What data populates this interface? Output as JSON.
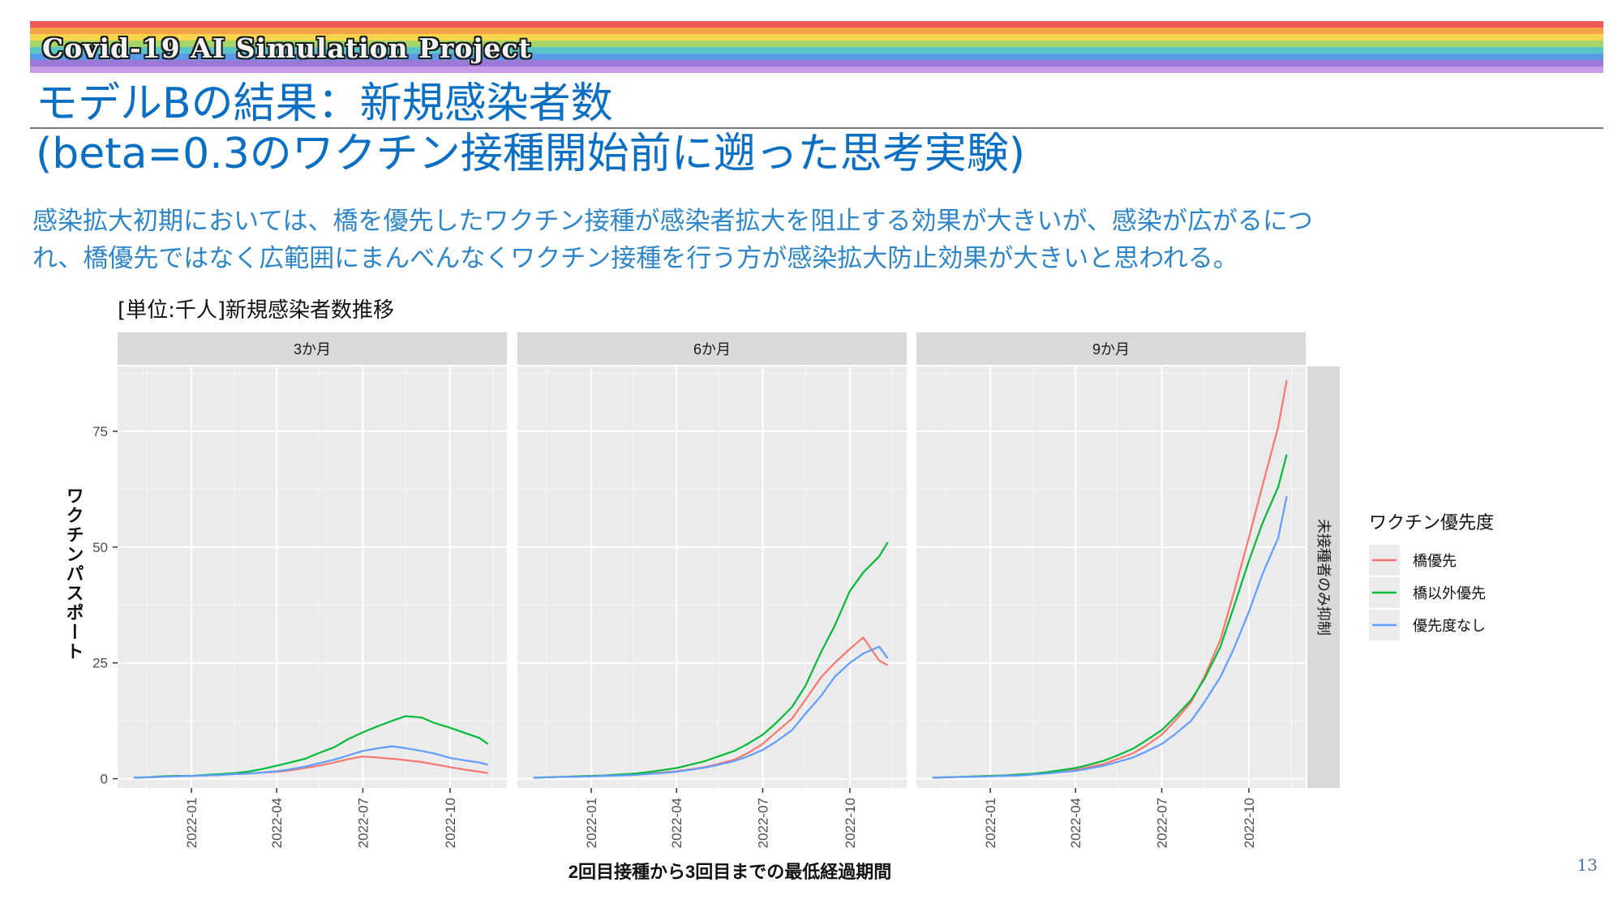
{
  "header": {
    "project_banner": "Covid-19 AI Simulation Project",
    "banner_colors": [
      "#f05a5a",
      "#f6a24a",
      "#f6d64a",
      "#a6d66a",
      "#5cc6c6",
      "#5a9ae6",
      "#9a7ad6",
      "#c89ae6"
    ],
    "title_line1": "モデルBの結果：新規感染者数",
    "title_line2": "(beta=0.3のワクチン接種開始前に遡った思考実験)"
  },
  "description": {
    "line1": "感染拡大初期においては、橋を優先したワクチン接種が感染者拡大を阻止する効果が大きいが、感染が広がるにつ",
    "line2": "れ、橋優先ではなく広範囲にまんべんなくワクチン接種を行う方が感染拡大防止効果が大きいと思われる。"
  },
  "chart_data": {
    "type": "line",
    "title": "[単位:千人]新規感染者数推移",
    "xlabel": "2回目接種から3回目までの最低経過期間",
    "ylabel": "ワクチンパスポート",
    "ylim": [
      -2,
      89
    ],
    "yticks": [
      0,
      25,
      50,
      75
    ],
    "xlim": [
      "2021-10-15",
      "2022-11-30"
    ],
    "xticks": [
      "2022-01",
      "2022-04",
      "2022-07",
      "2022-10"
    ],
    "row_strip": "未接種者のみ抑制",
    "legend": {
      "title": "ワクチン優先度",
      "placement": "right",
      "items": [
        "橋優先",
        "橋以外優先",
        "優先度なし"
      ]
    },
    "colors": {
      "橋優先": "#f8766d",
      "橋以外優先": "#00ba38",
      "優先度なし": "#619cff"
    },
    "x": [
      "2021-11-01",
      "2021-11-15",
      "2021-12-01",
      "2021-12-15",
      "2022-01-01",
      "2022-01-15",
      "2022-02-01",
      "2022-02-15",
      "2022-03-01",
      "2022-03-15",
      "2022-04-01",
      "2022-04-15",
      "2022-05-01",
      "2022-05-15",
      "2022-06-01",
      "2022-06-15",
      "2022-07-01",
      "2022-07-15",
      "2022-08-01",
      "2022-08-15",
      "2022-09-01",
      "2022-09-15",
      "2022-10-01",
      "2022-10-15",
      "2022-11-01",
      "2022-11-10"
    ],
    "panels": [
      {
        "strip": "3か月",
        "series": [
          {
            "name": "橋優先",
            "values": [
              0.2,
              0.3,
              0.5,
              0.6,
              0.6,
              0.7,
              0.9,
              1.0,
              1.1,
              1.3,
              1.5,
              1.8,
              2.3,
              2.8,
              3.5,
              4.2,
              4.8,
              4.6,
              4.3,
              4.0,
              3.6,
              3.1,
              2.5,
              2.0,
              1.5,
              1.2
            ]
          },
          {
            "name": "橋以外優先",
            "values": [
              0.2,
              0.3,
              0.5,
              0.6,
              0.6,
              0.8,
              1.0,
              1.2,
              1.5,
              2.0,
              2.8,
              3.5,
              4.3,
              5.5,
              6.8,
              8.5,
              10.0,
              11.2,
              12.5,
              13.5,
              13.2,
              12.0,
              11.0,
              10.0,
              8.8,
              7.5
            ]
          },
          {
            "name": "優先度なし",
            "values": [
              0.2,
              0.3,
              0.4,
              0.5,
              0.6,
              0.7,
              0.8,
              1.0,
              1.1,
              1.3,
              1.6,
              2.0,
              2.6,
              3.3,
              4.1,
              5.0,
              6.0,
              6.5,
              7.0,
              6.6,
              6.0,
              5.4,
              4.5,
              4.0,
              3.5,
              3.0
            ]
          }
        ]
      },
      {
        "strip": "6か月",
        "series": [
          {
            "name": "橋優先",
            "values": [
              0.2,
              0.3,
              0.4,
              0.5,
              0.6,
              0.7,
              0.8,
              0.9,
              1.1,
              1.3,
              1.6,
              2.0,
              2.5,
              3.2,
              4.1,
              5.5,
              7.5,
              10.0,
              13.0,
              17.0,
              22.0,
              25.0,
              28.0,
              30.5,
              25.5,
              24.5
            ]
          },
          {
            "name": "橋以外優先",
            "values": [
              0.2,
              0.3,
              0.4,
              0.5,
              0.6,
              0.7,
              0.9,
              1.1,
              1.4,
              1.8,
              2.3,
              3.0,
              3.8,
              4.8,
              6.0,
              7.5,
              9.5,
              12.0,
              15.5,
              20.0,
              27.5,
              33.0,
              40.5,
              44.5,
              48.0,
              51.0
            ]
          },
          {
            "name": "優先度なし",
            "values": [
              0.2,
              0.3,
              0.4,
              0.4,
              0.5,
              0.6,
              0.7,
              0.8,
              1.0,
              1.2,
              1.5,
              1.9,
              2.4,
              3.0,
              3.8,
              4.8,
              6.2,
              8.0,
              10.5,
              14.0,
              18.0,
              22.0,
              25.0,
              27.0,
              28.5,
              26.0
            ]
          }
        ]
      },
      {
        "strip": "9か月",
        "series": [
          {
            "name": "橋優先",
            "values": [
              0.2,
              0.3,
              0.4,
              0.5,
              0.6,
              0.7,
              0.8,
              1.0,
              1.2,
              1.5,
              1.9,
              2.5,
              3.2,
              4.2,
              5.5,
              7.2,
              9.5,
              12.5,
              16.5,
              22.0,
              30.0,
              40.0,
              52.0,
              63.0,
              76.0,
              86.0
            ]
          },
          {
            "name": "橋以外優先",
            "values": [
              0.2,
              0.3,
              0.4,
              0.5,
              0.6,
              0.7,
              0.9,
              1.1,
              1.4,
              1.8,
              2.3,
              3.0,
              3.9,
              5.0,
              6.5,
              8.3,
              10.5,
              13.3,
              17.0,
              21.5,
              28.5,
              37.0,
              47.0,
              55.0,
              63.0,
              70.0
            ]
          },
          {
            "name": "優先度なし",
            "values": [
              0.2,
              0.3,
              0.4,
              0.4,
              0.5,
              0.6,
              0.7,
              0.9,
              1.1,
              1.4,
              1.7,
              2.2,
              2.8,
              3.6,
              4.6,
              5.9,
              7.5,
              9.6,
              12.5,
              16.5,
              22.0,
              28.0,
              36.0,
              44.0,
              52.0,
              61.0
            ]
          }
        ]
      }
    ]
  },
  "footer": {
    "page_number": "13"
  }
}
